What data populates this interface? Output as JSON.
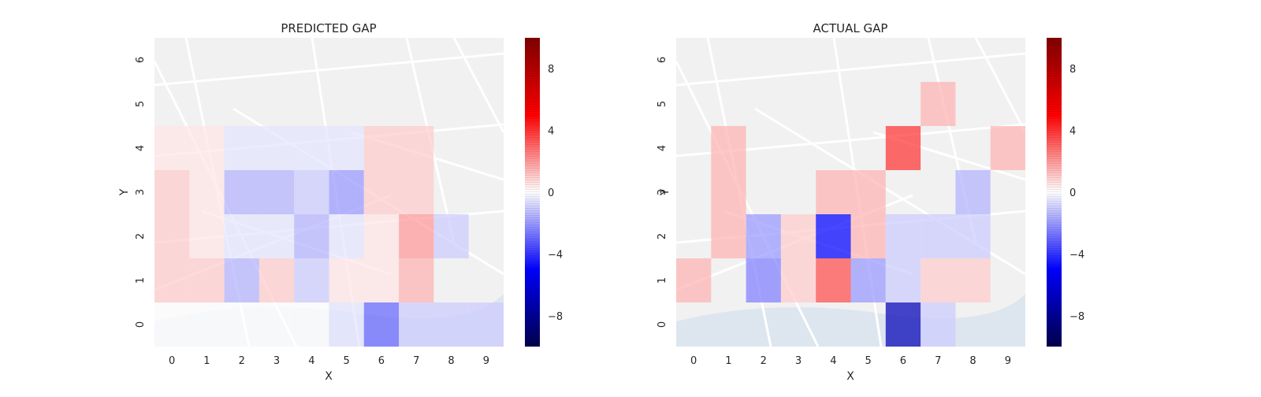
{
  "chart_data": [
    {
      "type": "heatmap",
      "title": "PREDICTED GAP",
      "xlabel": "X",
      "ylabel": "Y",
      "x_ticks": [
        "0",
        "1",
        "2",
        "3",
        "4",
        "5",
        "6",
        "7",
        "8",
        "9"
      ],
      "y_ticks": [
        "0",
        "1",
        "2",
        "3",
        "4",
        "5",
        "6"
      ],
      "xlim": [
        -0.5,
        9.5
      ],
      "ylim": [
        -0.5,
        6.5
      ],
      "value_range": [
        -10,
        10
      ],
      "colormap": "seismic",
      "background": "map",
      "cells": [
        {
          "x": 0,
          "y": 0,
          "v": 0
        },
        {
          "x": 1,
          "y": 0,
          "v": 0
        },
        {
          "x": 2,
          "y": 0,
          "v": 0
        },
        {
          "x": 3,
          "y": 0,
          "v": 0
        },
        {
          "x": 4,
          "y": 0,
          "v": 0
        },
        {
          "x": 5,
          "y": 0,
          "v": -0.5
        },
        {
          "x": 6,
          "y": 0,
          "v": -3
        },
        {
          "x": 7,
          "y": 0,
          "v": -1
        },
        {
          "x": 8,
          "y": 0,
          "v": -1
        },
        {
          "x": 9,
          "y": 0,
          "v": -1
        },
        {
          "x": 0,
          "y": 1,
          "v": 1
        },
        {
          "x": 1,
          "y": 1,
          "v": 1
        },
        {
          "x": 2,
          "y": 1,
          "v": -1.5
        },
        {
          "x": 3,
          "y": 1,
          "v": 1
        },
        {
          "x": 4,
          "y": 1,
          "v": -1
        },
        {
          "x": 5,
          "y": 1,
          "v": 0.5
        },
        {
          "x": 6,
          "y": 1,
          "v": 0.5
        },
        {
          "x": 7,
          "y": 1,
          "v": 1.5
        },
        {
          "x": 0,
          "y": 2,
          "v": 1
        },
        {
          "x": 1,
          "y": 2,
          "v": 0.5
        },
        {
          "x": 2,
          "y": 2,
          "v": -0.5
        },
        {
          "x": 3,
          "y": 2,
          "v": -0.5
        },
        {
          "x": 4,
          "y": 2,
          "v": -1.5
        },
        {
          "x": 5,
          "y": 2,
          "v": -0.5
        },
        {
          "x": 6,
          "y": 2,
          "v": 0.5
        },
        {
          "x": 7,
          "y": 2,
          "v": 2
        },
        {
          "x": 8,
          "y": 2,
          "v": -1
        },
        {
          "x": 0,
          "y": 3,
          "v": 1
        },
        {
          "x": 1,
          "y": 3,
          "v": 0.5
        },
        {
          "x": 2,
          "y": 3,
          "v": -1.5
        },
        {
          "x": 3,
          "y": 3,
          "v": -1.5
        },
        {
          "x": 4,
          "y": 3,
          "v": -1
        },
        {
          "x": 5,
          "y": 3,
          "v": -2
        },
        {
          "x": 6,
          "y": 3,
          "v": 1
        },
        {
          "x": 7,
          "y": 3,
          "v": 1
        },
        {
          "x": 0,
          "y": 4,
          "v": 0.5
        },
        {
          "x": 1,
          "y": 4,
          "v": 0.5
        },
        {
          "x": 2,
          "y": 4,
          "v": -0.5
        },
        {
          "x": 3,
          "y": 4,
          "v": -0.5
        },
        {
          "x": 4,
          "y": 4,
          "v": -0.5
        },
        {
          "x": 5,
          "y": 4,
          "v": -0.5
        },
        {
          "x": 6,
          "y": 4,
          "v": 1
        },
        {
          "x": 7,
          "y": 4,
          "v": 1
        }
      ],
      "colorbar": {
        "ticks": [
          8,
          4,
          0,
          -4,
          -8
        ],
        "tick_labels": [
          "8",
          "4",
          "0",
          "−4",
          "−8"
        ]
      }
    },
    {
      "type": "heatmap",
      "title": "ACTUAL GAP",
      "xlabel": "X",
      "ylabel": "Y",
      "x_ticks": [
        "0",
        "1",
        "2",
        "3",
        "4",
        "5",
        "6",
        "7",
        "8",
        "9"
      ],
      "y_ticks": [
        "0",
        "1",
        "2",
        "3",
        "4",
        "5",
        "6"
      ],
      "xlim": [
        -0.5,
        9.5
      ],
      "ylim": [
        -0.5,
        6.5
      ],
      "value_range": [
        -10,
        10
      ],
      "colormap": "seismic",
      "background": "map",
      "cells": [
        {
          "x": 6,
          "y": 0,
          "v": -7
        },
        {
          "x": 7,
          "y": 0,
          "v": -1
        },
        {
          "x": 0,
          "y": 1,
          "v": 1.5
        },
        {
          "x": 2,
          "y": 1,
          "v": -2.5
        },
        {
          "x": 3,
          "y": 1,
          "v": 1
        },
        {
          "x": 4,
          "y": 1,
          "v": 3.5
        },
        {
          "x": 5,
          "y": 1,
          "v": -2
        },
        {
          "x": 6,
          "y": 1,
          "v": -1
        },
        {
          "x": 7,
          "y": 1,
          "v": 1
        },
        {
          "x": 8,
          "y": 1,
          "v": 1
        },
        {
          "x": 1,
          "y": 2,
          "v": 1.5
        },
        {
          "x": 2,
          "y": 2,
          "v": -2
        },
        {
          "x": 3,
          "y": 2,
          "v": 1
        },
        {
          "x": 4,
          "y": 2,
          "v": -5
        },
        {
          "x": 5,
          "y": 2,
          "v": 1.5
        },
        {
          "x": 6,
          "y": 2,
          "v": -1
        },
        {
          "x": 7,
          "y": 2,
          "v": -1
        },
        {
          "x": 8,
          "y": 2,
          "v": -1
        },
        {
          "x": 1,
          "y": 3,
          "v": 1.5
        },
        {
          "x": 4,
          "y": 3,
          "v": 1.5
        },
        {
          "x": 5,
          "y": 3,
          "v": 1.5
        },
        {
          "x": 8,
          "y": 3,
          "v": -1.5
        },
        {
          "x": 1,
          "y": 4,
          "v": 1.5
        },
        {
          "x": 6,
          "y": 4,
          "v": 4
        },
        {
          "x": 9,
          "y": 4,
          "v": 1.5
        },
        {
          "x": 7,
          "y": 5,
          "v": 1.5
        }
      ],
      "colorbar": {
        "ticks": [
          8,
          4,
          0,
          -4,
          -8
        ],
        "tick_labels": [
          "8",
          "4",
          "0",
          "−4",
          "−8"
        ]
      }
    }
  ]
}
